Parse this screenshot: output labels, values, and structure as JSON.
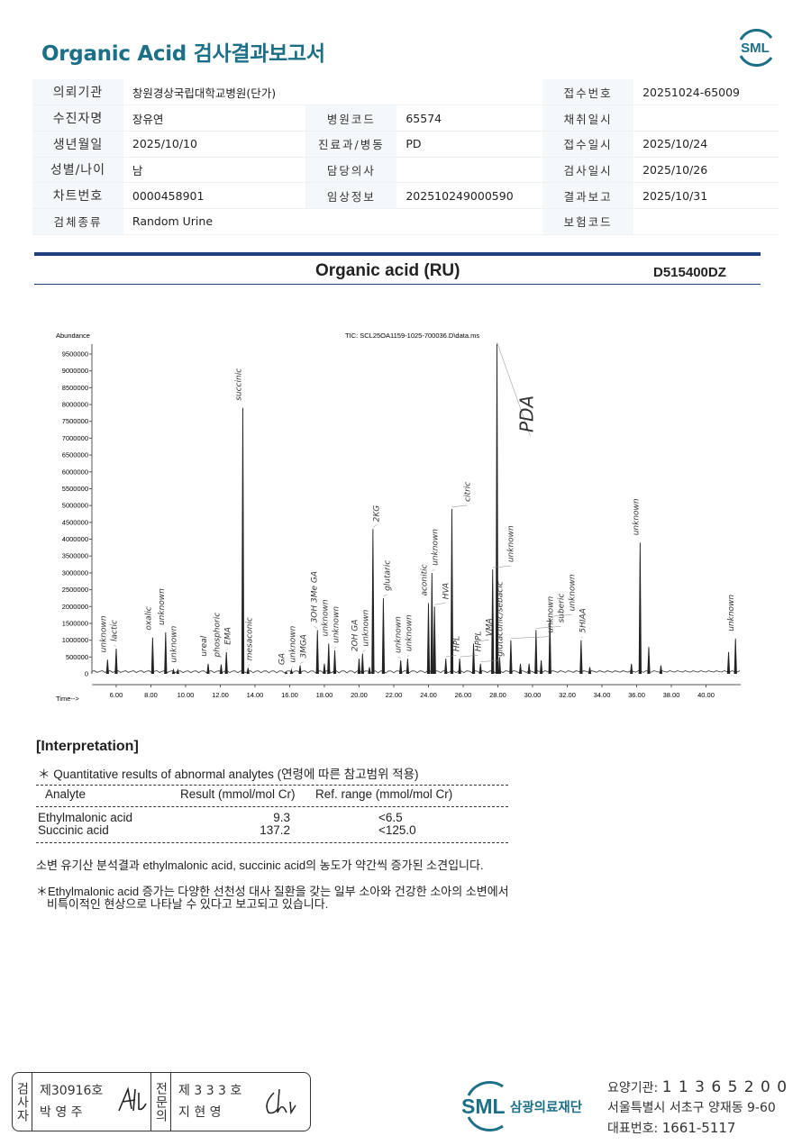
{
  "header": {
    "title": "Organic Acid 검사결과보고서",
    "logo_text": "SML"
  },
  "info": [
    [
      {
        "label": "의뢰기관",
        "value": "창원경상국립대학교병원(단가)"
      },
      null,
      {
        "label": "접수번호",
        "value": "20251024-65009"
      }
    ],
    [
      {
        "label": "수진자명",
        "value": "장유연"
      },
      {
        "label": "병원코드",
        "value": "65574"
      },
      {
        "label": "채취일시",
        "value": ""
      }
    ],
    [
      {
        "label": "생년월일",
        "value": "2025/10/10"
      },
      {
        "label": "진료과/병동",
        "value": "PD"
      },
      {
        "label": "접수일시",
        "value": "2025/10/24"
      }
    ],
    [
      {
        "label": "성별/나이",
        "value": "남"
      },
      {
        "label": "담당의사",
        "value": ""
      },
      {
        "label": "검사일시",
        "value": "2025/10/26"
      }
    ],
    [
      {
        "label": "차트번호",
        "value": "0000458901"
      },
      {
        "label": "임상정보",
        "value": "202510249000590"
      },
      {
        "label": "결과보고",
        "value": "2025/10/31"
      }
    ],
    [
      {
        "label": "검체종류",
        "value": "Random Urine"
      },
      null,
      {
        "label": "보험코드",
        "value": ""
      }
    ]
  ],
  "report": {
    "title": "Organic acid (RU)",
    "code": "D515400DZ"
  },
  "chromatogram": {
    "ylabel": "Abundance",
    "xlabel": "Time-->",
    "tic": "TIC: SCL25OA1159-1025-700036.D\\data.ms",
    "xlim": [
      4.6,
      42
    ],
    "ylim": [
      0,
      9500000
    ],
    "xticks": [
      "6.00",
      "8.00",
      "10.00",
      "12.00",
      "14.00",
      "16.00",
      "18.00",
      "20.00",
      "22.00",
      "24.00",
      "26.00",
      "28.00",
      "30.00",
      "32.00",
      "34.00",
      "36.00",
      "38.00",
      "40.00"
    ],
    "yticks": [
      "500000",
      "1000000",
      "1500000",
      "2000000",
      "2500000",
      "3000000",
      "3500000",
      "4000000",
      "4500000",
      "5000000",
      "5500000",
      "6000000",
      "6500000",
      "7000000",
      "7500000",
      "8000000",
      "8500000",
      "9000000",
      "9500000"
    ],
    "peaks": [
      {
        "t": 5.5,
        "a": 420000,
        "label": "unknown"
      },
      {
        "t": 6.0,
        "a": 750000,
        "label": "lactic"
      },
      {
        "t": 8.1,
        "a": 1080000,
        "label": "oxalic"
      },
      {
        "t": 8.85,
        "a": 1230000,
        "label": "unknown"
      },
      {
        "t": 9.3,
        "a": 120000
      },
      {
        "t": 9.55,
        "a": 120000,
        "label": "unknown"
      },
      {
        "t": 11.3,
        "a": 300000,
        "label": "ureal"
      },
      {
        "t": 12.05,
        "a": 280000,
        "label": "phosphoric"
      },
      {
        "t": 12.35,
        "a": 650000,
        "label": "EMA"
      },
      {
        "t": 13.3,
        "a": 7900000,
        "label": "succinic"
      },
      {
        "t": 13.6,
        "a": 180000,
        "label": "mesaconic"
      },
      {
        "t": 15.8,
        "a": 50000,
        "label": "GA"
      },
      {
        "t": 16.1,
        "a": 120000,
        "label": "unknown"
      },
      {
        "t": 16.6,
        "a": 250000,
        "label": "3MGA"
      },
      {
        "t": 17.6,
        "a": 1300000,
        "label": "3OH 3Me GA"
      },
      {
        "t": 18.0,
        "a": 300000
      },
      {
        "t": 18.25,
        "a": 900000,
        "label": "unknown"
      },
      {
        "t": 18.6,
        "a": 700000,
        "label": "unknown"
      },
      {
        "t": 20.0,
        "a": 450000,
        "label": "2OH GA"
      },
      {
        "t": 20.2,
        "a": 600000,
        "label": "unknown"
      },
      {
        "t": 20.6,
        "a": 200000
      },
      {
        "t": 20.8,
        "a": 4300000,
        "label": "2KG"
      },
      {
        "t": 21.4,
        "a": 2250000,
        "label": "glutaric"
      },
      {
        "t": 22.4,
        "a": 400000,
        "label": "unknown"
      },
      {
        "t": 22.8,
        "a": 450000,
        "label": "unknown"
      },
      {
        "t": 24.0,
        "a": 2100000,
        "label": "aconitic"
      },
      {
        "t": 24.2,
        "a": 3000000,
        "label": "unknown"
      },
      {
        "t": 24.35,
        "a": 2000000,
        "label": "HVA"
      },
      {
        "t": 25.0,
        "a": 450000,
        "label": "HPL"
      },
      {
        "t": 25.35,
        "a": 4900000,
        "label": "citric"
      },
      {
        "t": 25.8,
        "a": 450000,
        "label": "HPPL"
      },
      {
        "t": 26.6,
        "a": 900000,
        "label": "VMA"
      },
      {
        "t": 27.0,
        "a": 300000,
        "label": "glutaconic/sebacic"
      },
      {
        "t": 27.7,
        "a": 3100000,
        "label": "unknown"
      },
      {
        "t": 27.95,
        "a": 9800000,
        "label": "PDA"
      },
      {
        "t": 28.1,
        "a": 500000
      },
      {
        "t": 28.75,
        "a": 1000000,
        "label": "unknown"
      },
      {
        "t": 29.3,
        "a": 300000
      },
      {
        "t": 29.8,
        "a": 300000
      },
      {
        "t": 30.2,
        "a": 1300000,
        "label": "suberic"
      },
      {
        "t": 30.5,
        "a": 400000
      },
      {
        "t": 31.0,
        "a": 1650000,
        "label": "unknown"
      },
      {
        "t": 32.8,
        "a": 1000000,
        "label": "5HIAA"
      },
      {
        "t": 33.3,
        "a": 200000
      },
      {
        "t": 35.7,
        "a": 300000
      },
      {
        "t": 36.2,
        "a": 3900000,
        "label": "unknown"
      },
      {
        "t": 36.7,
        "a": 800000
      },
      {
        "t": 37.4,
        "a": 250000
      },
      {
        "t": 41.3,
        "a": 650000
      },
      {
        "t": 41.7,
        "a": 1050000,
        "label": "unknown"
      }
    ]
  },
  "interpretation": {
    "heading": "[Interpretation]",
    "subtitle": "＊ Quantitative results of abnormal analytes (연령에 따른 참고범위 적용)",
    "columns": [
      "Analyte",
      "Result (mmol/mol Cr)",
      "Ref. range (mmol/mol Cr)"
    ],
    "rows": [
      [
        "Ethylmalonic acid",
        "9.3",
        "<6.5"
      ],
      [
        "Succinic acid",
        "137.2",
        "<125.0"
      ]
    ],
    "summary": "소변 유기산 분석결과 ethylmalonic acid, succinic acid의 농도가 약간씩 증가된 소견입니다.",
    "note1": "＊Ethylmalonic acid 증가는 다양한 선천성 대사 질환을 갖는 일부 소아와 건강한 소아의 소변에서",
    "note2": "비특이적인 현상으로 나타날 수 있다고 보고되고 있습니다."
  },
  "footer": {
    "tester_role": "검사자",
    "tester_no": "제30916호",
    "tester_name": "박  영  주",
    "doctor_role": "전문의",
    "doctor_no": "제 3 3 3 호",
    "doctor_name": "지  현  영",
    "org_logo": "SML",
    "org_name": "삼광의료재단",
    "code_label": "요양기관: ",
    "code": "1 1 3 6 5 2 0 0",
    "address": "서울특별시 서초구 양재동 9-60",
    "phone_label": "대표번호: ",
    "phone": "1661-5117"
  }
}
